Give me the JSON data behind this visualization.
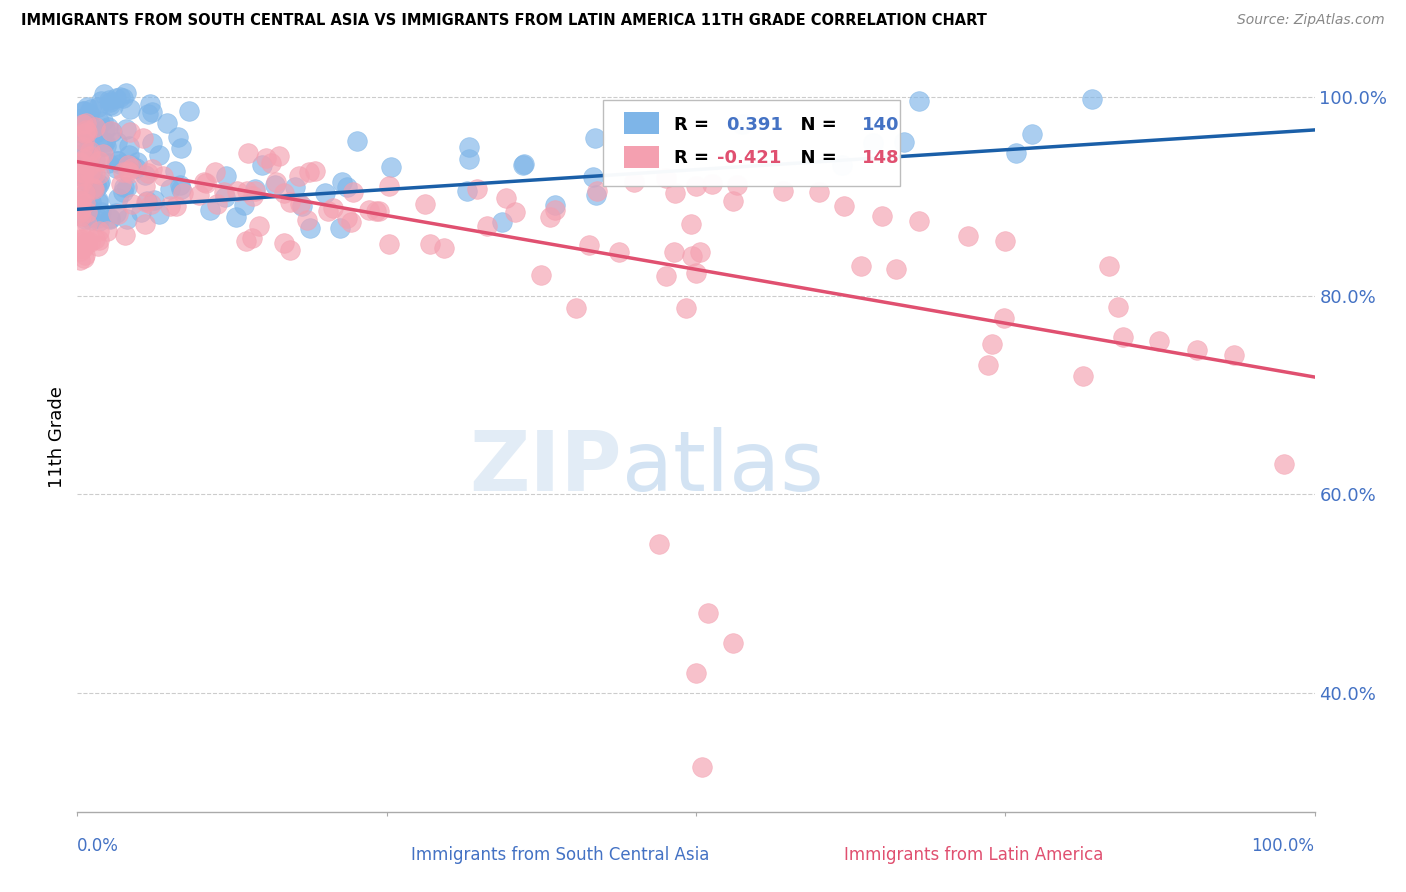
{
  "title": "IMMIGRANTS FROM SOUTH CENTRAL ASIA VS IMMIGRANTS FROM LATIN AMERICA 11TH GRADE CORRELATION CHART",
  "source": "Source: ZipAtlas.com",
  "ylabel": "11th Grade",
  "xlim": [
    0.0,
    1.0
  ],
  "ylim": [
    0.28,
    1.035
  ],
  "yticks": [
    0.4,
    0.6,
    0.8,
    1.0
  ],
  "ytick_labels": [
    "40.0%",
    "60.0%",
    "80.0%",
    "100.0%"
  ],
  "blue_R": "0.391",
  "blue_N": "140",
  "pink_R": "-0.421",
  "pink_N": "148",
  "blue_color": "#7EB5E8",
  "pink_color": "#F4A0B0",
  "blue_line_color": "#1A5FA8",
  "pink_line_color": "#E05070",
  "legend_label_blue": "Immigrants from South Central Asia",
  "legend_label_pink": "Immigrants from Latin America",
  "blue_line_x0": 0.0,
  "blue_line_y0": 0.887,
  "blue_line_x1": 1.0,
  "blue_line_y1": 0.967,
  "pink_line_x0": 0.0,
  "pink_line_y0": 0.935,
  "pink_line_x1": 1.0,
  "pink_line_y1": 0.718
}
